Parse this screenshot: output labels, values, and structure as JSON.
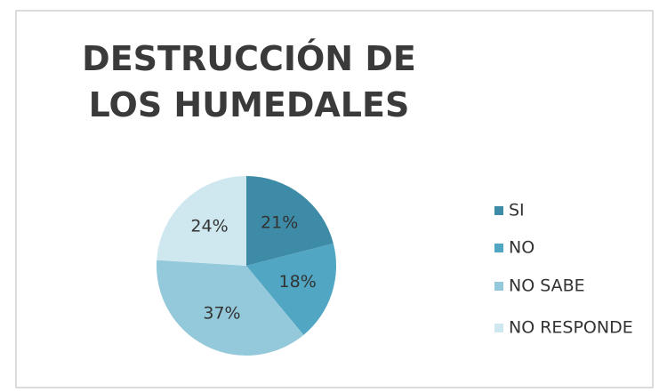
{
  "chart_data": {
    "type": "pie",
    "title": "DESTRUCCIÓN DE LOS HUMEDALES",
    "categories": [
      "SI",
      "NO",
      "NO SABE",
      "NO RESPONDE"
    ],
    "values": [
      21,
      18,
      37,
      24
    ],
    "value_labels": [
      "21%",
      "18%",
      "37%",
      "24%"
    ],
    "colors": [
      "#3d8ba7",
      "#50a6c3",
      "#93c9da",
      "#cfe8f0"
    ],
    "legend": "right"
  }
}
